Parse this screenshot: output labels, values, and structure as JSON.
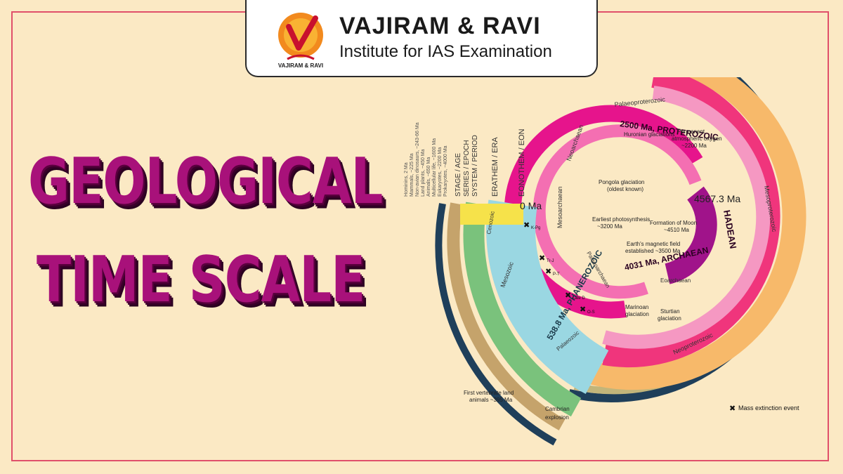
{
  "brand": {
    "name": "VAJIRAM & RAVI",
    "tagline": "Institute for IAS Examination",
    "mark_text": "VAJIRAM & RAVI"
  },
  "title": {
    "line1": "GEOLOGICAL",
    "line2": "TIME SCALE"
  },
  "diagram": {
    "col_headers": [
      "STAGE / AGE",
      "SERIES / EPOCH",
      "SYSTEM / PERIOD",
      "ERATHEM / ERA",
      "EONOTHEM / EON"
    ],
    "milestones": [
      "Hominins, 2 Ma",
      "Mammals, ~225 Ma",
      "Non-avian dinosaurs, ~243-66 Ma",
      "Land plants, ~450 Ma",
      "Animals, ~650 Ma",
      "Multicellular life, ~1600 Ma",
      "Eukaryotes, ~2200 Ma",
      "Prokaryotes, ~4000 Ma"
    ],
    "zero": "0 Ma",
    "start": "4567.3 Ma",
    "hadean": "HADEAN",
    "archaean": "4031 Ma, ARCHAEAN",
    "proterozoic": "2500 Ma, PROTEROZOIC",
    "phanerozoic": "538.8 Ma, PHANEROZOIC",
    "eras": {
      "palaeoproterozoic": "Palaeoproterozoic",
      "mesoproterozoic": "Mesoproterozoic",
      "neoproterozoic": "Neoproterozoic",
      "neoarchaean": "Neoarchaean",
      "mesoarchaean": "Mesoarchaean",
      "palaeoarchaean": "Palaeoarchaean",
      "eoarchaean": "Eoarchaean",
      "cenozoic": "Cenozoic",
      "mesozoic": "Mesozoic",
      "palaeozoic": "Palaeozoic"
    },
    "events": {
      "huronian": "Huronian glaciations",
      "oxygen1": "Permanent",
      "oxygen2": "atmospheric oxygen",
      "oxygen3": "~2200 Ma",
      "pongola1": "Pongola glaciation",
      "pongola2": "(oldest known)",
      "moon1": "Formation of Moon",
      "moon2": "~4510 Ma",
      "photo1": "Earliest photosynthesis",
      "photo2": "~3200 Ma",
      "magnet1": "Earth's magnetic field",
      "magnet2": "established ~3500 Ma",
      "marinoan1": "Marinoan",
      "marinoan2": "glaciation",
      "sturtian1": "Sturtian",
      "sturtian2": "glaciation",
      "vertebrate1": "First vertebrate land",
      "vertebrate2": "animals ~395 Ma",
      "cambrian1": "Cambrian",
      "cambrian2": "explosion"
    },
    "extinctions": [
      "K-Pg",
      "Tr-J",
      "P-T",
      "Late D",
      "O-S"
    ],
    "legend": "Mass extinction event",
    "colors": {
      "hadean": "#a0138a",
      "archaean": "#e6148c",
      "proterozoic": "#f0357c",
      "phanerozoic": "#9ad7e2",
      "outer": "#1f3f5a"
    }
  }
}
